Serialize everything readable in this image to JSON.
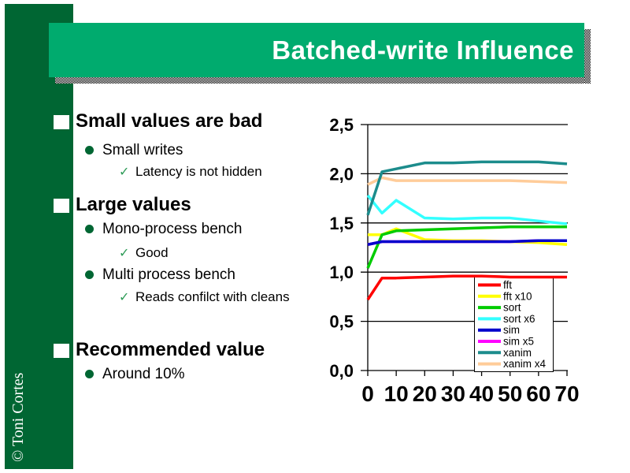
{
  "slide": {
    "title": "Batched-write Influence",
    "copyright": "© Toni Cortes",
    "colors": {
      "banner_green": "#00AB6E",
      "sidebar_green": "#006633",
      "check_green": "#2E9B57"
    }
  },
  "bullets": [
    {
      "level": 1,
      "text": "Small values are bad"
    },
    {
      "level": 2,
      "text": "Small writes"
    },
    {
      "level": 3,
      "text": "Latency is not hidden"
    },
    {
      "level": 1,
      "text": "Large values"
    },
    {
      "level": 2,
      "text": "Mono-process bench"
    },
    {
      "level": 3,
      "text": "Good"
    },
    {
      "level": 2,
      "text": "Multi process bench"
    },
    {
      "level": 3,
      "text": "Reads confilct with cleans"
    },
    {
      "level": 1,
      "text": "Recommended value"
    },
    {
      "level": 2,
      "text": "Around 10%"
    }
  ],
  "chart_data": {
    "type": "line",
    "title": "",
    "xlabel": "",
    "ylabel": "",
    "x": [
      0,
      5,
      10,
      20,
      30,
      40,
      50,
      60,
      70
    ],
    "xticks": {
      "values": [
        0,
        10,
        20,
        30,
        40,
        50,
        60,
        70
      ],
      "labels": [
        "0",
        "10",
        "20",
        "30",
        "40",
        "50",
        "60",
        "70"
      ]
    },
    "yticks": {
      "values": [
        0,
        0.5,
        1.0,
        1.5,
        2.0,
        2.5
      ],
      "labels": [
        "0,0",
        "0,5",
        "1,0",
        "1,5",
        "2,0",
        "2,5"
      ]
    },
    "ylim": [
      0,
      2.5
    ],
    "xlim": [
      0,
      70
    ],
    "grid": true,
    "legend_position": "inside-bottom-right",
    "series": [
      {
        "name": "fft",
        "color": "#FF0000",
        "values": [
          0.72,
          0.94,
          0.94,
          0.95,
          0.96,
          0.96,
          0.95,
          0.95,
          0.95
        ]
      },
      {
        "name": "fft x10",
        "color": "#FFFF00",
        "values": [
          1.38,
          1.38,
          1.44,
          1.33,
          1.32,
          1.32,
          1.31,
          1.3,
          1.28
        ]
      },
      {
        "name": "sort",
        "color": "#00CC00",
        "values": [
          1.04,
          1.38,
          1.42,
          1.43,
          1.44,
          1.45,
          1.46,
          1.46,
          1.46
        ]
      },
      {
        "name": "sort x6",
        "color": "#33FFFF",
        "values": [
          1.78,
          1.6,
          1.73,
          1.55,
          1.54,
          1.55,
          1.55,
          1.52,
          1.49
        ]
      },
      {
        "name": "sim",
        "color": "#0000CC",
        "values": [
          1.28,
          1.31,
          1.31,
          1.31,
          1.31,
          1.31,
          1.31,
          1.32,
          1.32
        ]
      },
      {
        "name": "sim x5",
        "color": "#FF00FF",
        "values": [
          1.28,
          1.31,
          1.31,
          1.31,
          1.31,
          1.31,
          1.31,
          1.32,
          1.32
        ]
      },
      {
        "name": "xanim",
        "color": "#1C8C8C",
        "values": [
          1.58,
          2.02,
          2.05,
          2.11,
          2.11,
          2.12,
          2.12,
          2.12,
          2.1
        ]
      },
      {
        "name": "xanim x4",
        "color": "#FFCC99",
        "values": [
          1.89,
          1.96,
          1.93,
          1.93,
          1.93,
          1.93,
          1.93,
          1.92,
          1.91
        ]
      }
    ]
  }
}
